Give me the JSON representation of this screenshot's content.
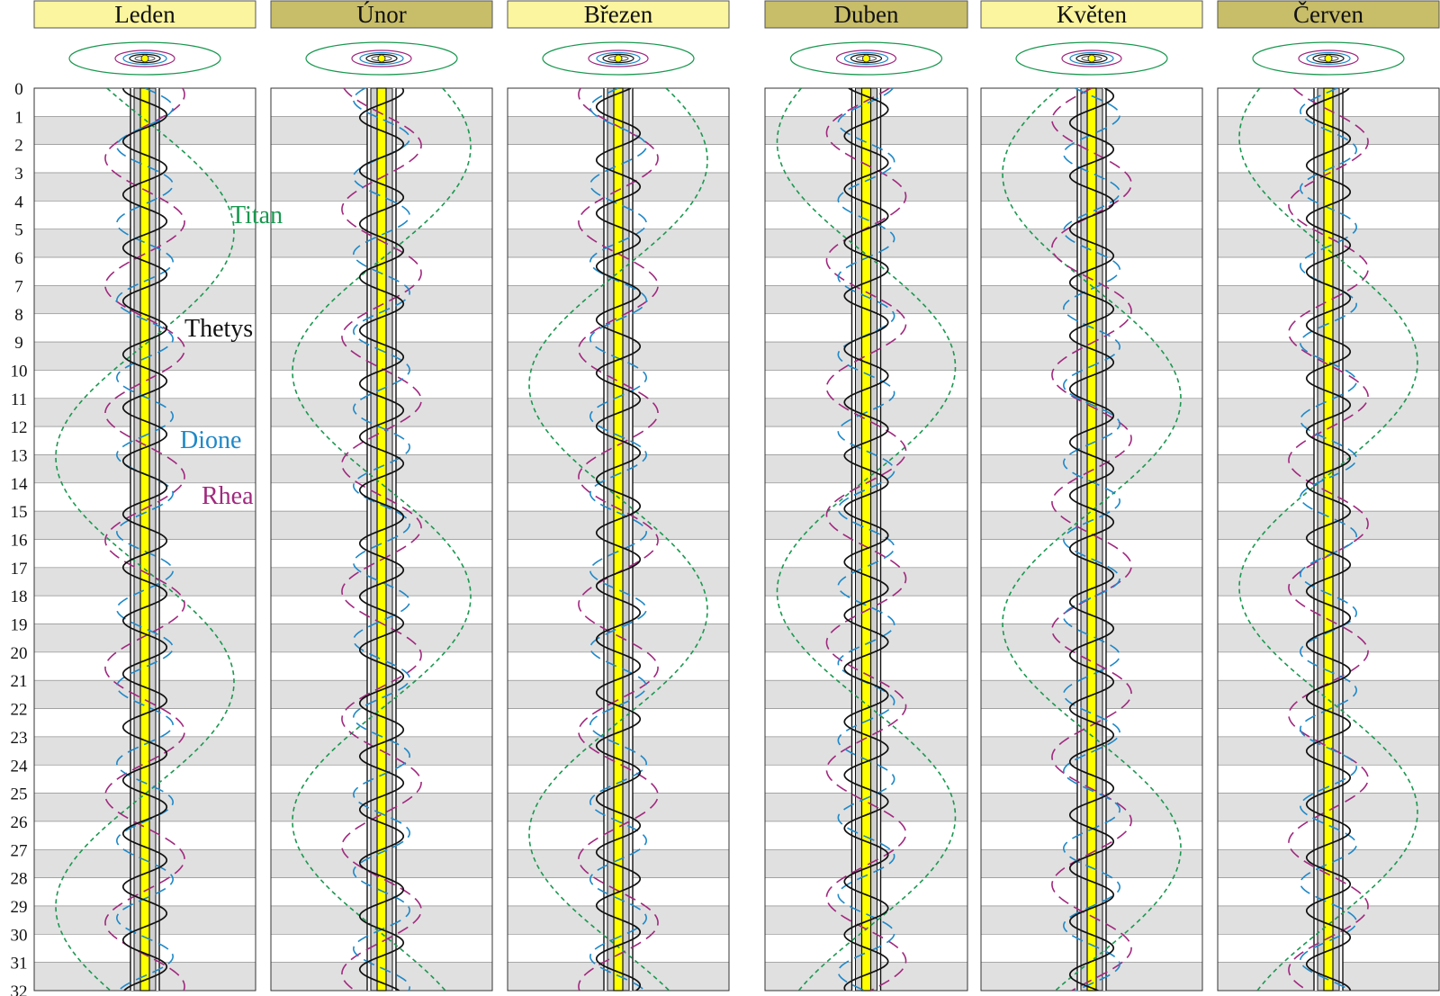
{
  "chart_data": {
    "type": "line",
    "title": "",
    "months": [
      {
        "name": "Leden",
        "header_color": "#FAF59E"
      },
      {
        "name": "Únor",
        "header_color": "#C8BD69"
      },
      {
        "name": "Březen",
        "header_color": "#FAF59E"
      },
      {
        "name": "Duben",
        "header_color": "#C8BD69"
      },
      {
        "name": "Květen",
        "header_color": "#FAF59E"
      },
      {
        "name": "Červen",
        "header_color": "#C8BD69"
      }
    ],
    "day_ticks": [
      "0",
      "1",
      "2",
      "3",
      "4",
      "5",
      "6",
      "7",
      "8",
      "9",
      "10",
      "11",
      "12",
      "13",
      "14",
      "15",
      "16",
      "17",
      "18",
      "19",
      "20",
      "21",
      "22",
      "23",
      "24",
      "25",
      "26",
      "27",
      "28",
      "29",
      "30",
      "31",
      "32"
    ],
    "y_range_days": [
      0,
      32
    ],
    "row_shading": "alternating white / light gray",
    "planet_color": "#FFFF00",
    "series": [
      {
        "name": "Titan",
        "label": "Titan",
        "color": "#1A9850",
        "period_days": 15.945,
        "amplitude": 1.0,
        "dash": "short",
        "phase_by_month": [
          0.93,
          0.12,
          0.09,
          0.63,
          0.56,
          0.64
        ]
      },
      {
        "name": "Rhea",
        "label": "Rhea",
        "color": "#A0287E",
        "period_days": 4.518,
        "amplitude": 0.445,
        "dash": "long",
        "phase_by_month": [
          0.2,
          0.8,
          0.7,
          0.4,
          0.5,
          0.83
        ]
      },
      {
        "name": "Dione",
        "label": "Dione",
        "color": "#1E88C8",
        "period_days": 2.737,
        "amplitude": 0.315,
        "dash": "long",
        "phase_by_month": [
          0.0,
          0.6,
          0.5,
          0.3,
          0.9,
          0.45
        ]
      },
      {
        "name": "Thetys",
        "label": "Thetys",
        "color": "#111111",
        "period_days": 1.888,
        "amplitude": 0.245,
        "dash": "solid",
        "phase_by_month": [
          0.75,
          0.2,
          0.4,
          0.85,
          0.1,
          0.3
        ]
      }
    ],
    "legend_placement": "inline labels beside the curves in the first column"
  }
}
